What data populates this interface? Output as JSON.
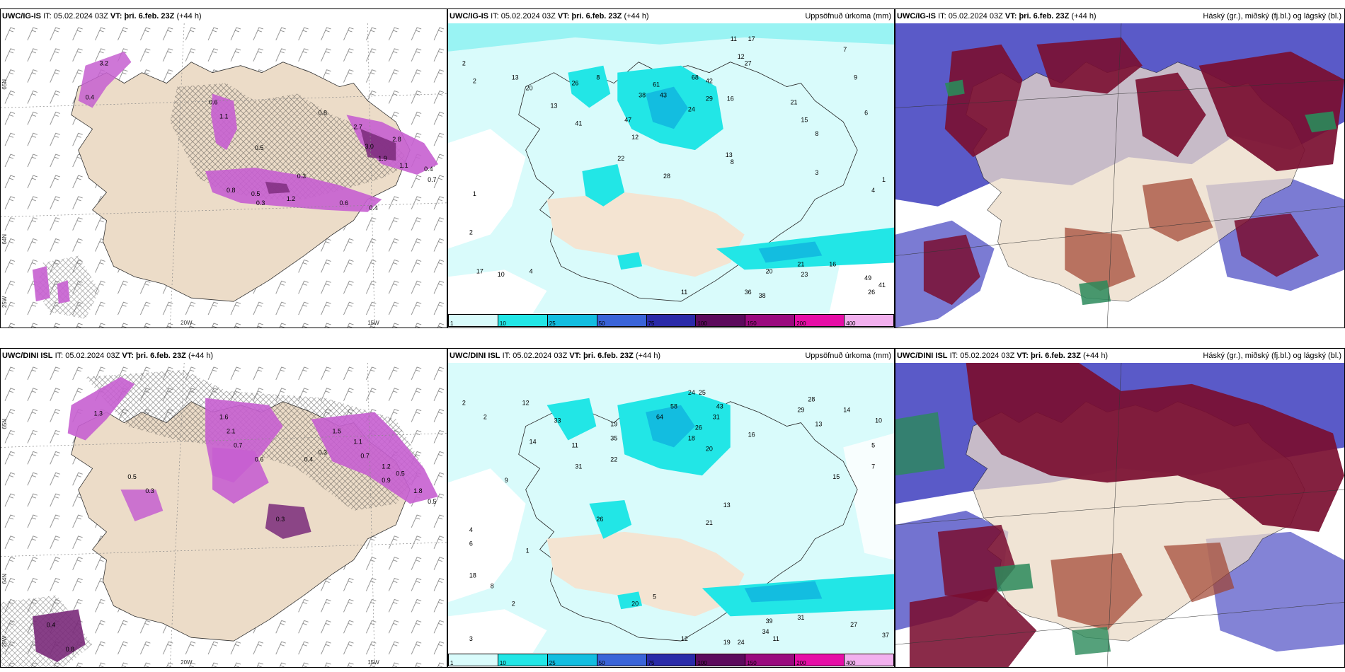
{
  "panels": [
    {
      "model": "UWC/IG-IS",
      "it_label": "IT:",
      "it": "05.02.2024 03Z",
      "vt_label": "VT:",
      "vt": "þri. 6.feb. 23Z",
      "lead": "(+44 h)",
      "right": ""
    },
    {
      "model": "UWC/IG-IS",
      "it_label": "IT:",
      "it": "05.02.2024 03Z",
      "vt_label": "VT:",
      "vt": "þri. 6.feb. 23Z",
      "lead": "(+44 h)",
      "right": "Uppsöfnuð úrkoma (mm)"
    },
    {
      "model": "UWC/IG-IS",
      "it_label": "IT:",
      "it": "05.02.2024 03Z",
      "vt_label": "VT:",
      "vt": "þri. 6.feb. 23Z",
      "lead": "(+44 h)",
      "right": "Háský (gr.), miðský (fj.bl.) og lágský (bl.)"
    },
    {
      "model": "UWC/DINI ISL",
      "it_label": "IT:",
      "it": "05.02.2024 03Z",
      "vt_label": "VT:",
      "vt": "þri. 6.feb. 23Z",
      "lead": "(+44 h)",
      "right": ""
    },
    {
      "model": "UWC/DINI ISL",
      "it_label": "IT:",
      "it": "05.02.2024 03Z",
      "vt_label": "VT:",
      "vt": "þri. 6.feb. 23Z",
      "lead": "(+44 h)",
      "right": "Uppsöfnuð úrkoma (mm)"
    },
    {
      "model": "UWC/DINI ISL",
      "it_label": "IT:",
      "it": "05.02.2024 03Z",
      "vt_label": "VT:",
      "vt": "þri. 6.feb. 23Z",
      "lead": "(+44 h)",
      "right": "Háský (gr.), miðský (fj.bl.) og lágský (bl.)"
    }
  ],
  "grid_labels": {
    "lat_top": "65N",
    "lat_mid": "64N",
    "lon_w25": "25W",
    "lon_w20": "20W",
    "lon_w15": "15W"
  },
  "legend": {
    "colors": [
      "#d9fbfb",
      "#22e6e6",
      "#13bde0",
      "#3a64d8",
      "#2a2aa8",
      "#5c0a5c",
      "#9a0a7e",
      "#e60ea6",
      "#f2b0ee"
    ],
    "ticks": [
      "1",
      "10",
      "25",
      "50",
      "75",
      "100",
      "150",
      "200",
      "400"
    ]
  },
  "snow_values_top": [
    "3.2",
    "0.6",
    "1.1",
    "0.4",
    "0.5",
    "0.8",
    "2.7",
    "3.0",
    "2.8",
    "1.9",
    "1.1",
    "0.4",
    "0.7",
    "0.5",
    "0.3",
    "1.2",
    "0.6",
    "0.8",
    "0.3",
    "0.4"
  ],
  "snow_values_bottom": [
    "0.4",
    "0.8",
    "1.3",
    "0.5",
    "0.3",
    "1.6",
    "2.1",
    "0.7",
    "0.6",
    "1.8",
    "0.5",
    "0.3",
    "1.5",
    "0.4",
    "0.3",
    "1.1",
    "0.7",
    "1.2",
    "0.5",
    "0.9"
  ],
  "precip_values_top": [
    "2",
    "2",
    "13",
    "20",
    "26",
    "8",
    "13",
    "41",
    "47",
    "38",
    "61",
    "43",
    "68",
    "42",
    "29",
    "24",
    "16",
    "27",
    "12",
    "11",
    "17",
    "15",
    "8",
    "12",
    "22",
    "28",
    "13",
    "21",
    "8",
    "7",
    "9",
    "6",
    "3",
    "17",
    "10",
    "4",
    "1",
    "2",
    "21",
    "20",
    "23",
    "36",
    "38",
    "16",
    "11",
    "41",
    "26",
    "49",
    "4",
    "1"
  ],
  "precip_values_bottom": [
    "2",
    "2",
    "12",
    "33",
    "14",
    "11",
    "19",
    "35",
    "64",
    "58",
    "24",
    "25",
    "43",
    "31",
    "26",
    "18",
    "20",
    "22",
    "31",
    "26",
    "21",
    "13",
    "15",
    "34",
    "39",
    "27",
    "37",
    "31",
    "16",
    "19",
    "24",
    "11",
    "12",
    "9",
    "5",
    "7",
    "10",
    "6",
    "18",
    "8",
    "4",
    "3",
    "20",
    "5",
    "2",
    "1",
    "28",
    "29",
    "13",
    "14"
  ],
  "colors": {
    "land": "#ecdcc8",
    "sea": "#ffffff",
    "snow_light": "#e8a6e8",
    "snow_mid": "#c65fd0",
    "snow_dark": "#7a2a7a",
    "precip_light": "#d9fbfb",
    "precip_mid": "#22e6e6",
    "precip_deep": "#13bde0",
    "cloud_high": "#5b0a2e",
    "cloud_mid": "#5a5ac8",
    "cloud_low": "#2a8a5a"
  }
}
